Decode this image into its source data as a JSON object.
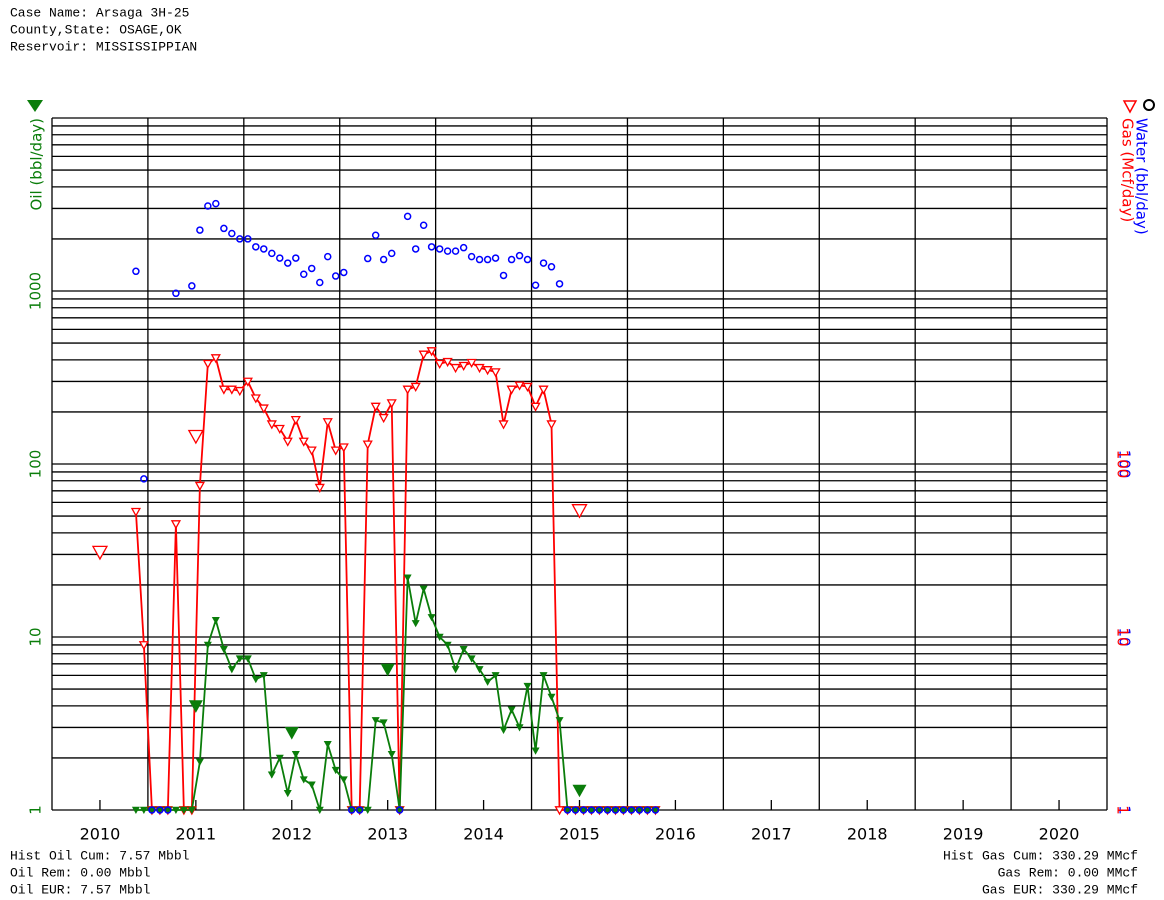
{
  "chart_data": {
    "type": "line",
    "header": [
      "Case Name: Arsaga 3H-25",
      "County,State: OSAGE,OK",
      "Reservoir: MISSISSIPPIAN"
    ],
    "footer_left": [
      "Hist Oil Cum: 7.57 Mbbl",
      "Oil Rem: 0.00 Mbbl",
      "Oil EUR: 7.57 Mbbl"
    ],
    "footer_right": [
      "Hist Gas Cum: 330.29 MMcf",
      "Gas Rem: 0.00 MMcf",
      "Gas EUR: 330.29 MMcf"
    ],
    "log": true,
    "xlim": [
      2010,
      2021
    ],
    "xgrid": [
      2010,
      2011,
      2012,
      2013,
      2014,
      2015,
      2016,
      2017,
      2018,
      2019,
      2020,
      2021
    ],
    "xticks": [
      {
        "value": 2010.5,
        "label": "2010"
      },
      {
        "value": 2011.5,
        "label": "2011"
      },
      {
        "value": 2012.5,
        "label": "2012"
      },
      {
        "value": 2013.5,
        "label": "2013"
      },
      {
        "value": 2014.5,
        "label": "2014"
      },
      {
        "value": 2015.5,
        "label": "2015"
      },
      {
        "value": 2016.5,
        "label": "2016"
      },
      {
        "value": 2017.5,
        "label": "2017"
      },
      {
        "value": 2018.5,
        "label": "2018"
      },
      {
        "value": 2019.5,
        "label": "2019"
      },
      {
        "value": 2020.5,
        "label": "2020"
      }
    ],
    "ylim": [
      1,
      10000
    ],
    "yticks": [
      1,
      10,
      100,
      1000
    ],
    "y2lim": [
      1,
      10000
    ],
    "y2ticks": [
      1,
      10,
      100
    ],
    "ygrid": [
      1,
      2,
      3,
      4,
      5,
      6,
      7,
      8,
      9,
      10,
      20,
      30,
      40,
      50,
      60,
      70,
      80,
      90,
      100,
      200,
      300,
      400,
      500,
      600,
      700,
      800,
      900,
      1000,
      2000,
      3000,
      4000,
      5000,
      6000,
      7000,
      8000,
      9000,
      10000
    ],
    "x": [
      2010.875,
      2010.958,
      2011.042,
      2011.125,
      2011.208,
      2011.292,
      2011.375,
      2011.458,
      2011.542,
      2011.625,
      2011.708,
      2011.792,
      2011.875,
      2011.958,
      2012.042,
      2012.125,
      2012.208,
      2012.292,
      2012.375,
      2012.458,
      2012.542,
      2012.625,
      2012.708,
      2012.792,
      2012.875,
      2012.958,
      2013.042,
      2013.125,
      2013.208,
      2013.292,
      2013.375,
      2013.458,
      2013.542,
      2013.625,
      2013.708,
      2013.792,
      2013.875,
      2013.958,
      2014.042,
      2014.125,
      2014.208,
      2014.292,
      2014.375,
      2014.458,
      2014.542,
      2014.625,
      2014.708,
      2014.792,
      2014.875,
      2014.958,
      2015.042,
      2015.125,
      2015.208,
      2015.292,
      2015.375,
      2015.458,
      2015.542,
      2015.625,
      2015.708,
      2015.792,
      2015.875,
      2015.958,
      2016.042,
      2016.125,
      2016.208,
      2016.292
    ],
    "series": [
      {
        "name": "Oil (bbl/day)",
        "color": "#0a7d0a",
        "marker": "triangle-filled",
        "line": true,
        "values": [
          1,
          1,
          1,
          1,
          1,
          1,
          1,
          1,
          1.9,
          9,
          12.5,
          8.5,
          6.5,
          7.5,
          7.5,
          5.7,
          6,
          1.6,
          2,
          1.25,
          2.1,
          1.5,
          1.4,
          1,
          2.4,
          1.7,
          1.5,
          1,
          1,
          1,
          3.3,
          3.2,
          2.1,
          1,
          22,
          12,
          19,
          13,
          10,
          9,
          6.5,
          8.5,
          7.5,
          6.5,
          5.5,
          6,
          2.9,
          3.8,
          3,
          5.2,
          2.2,
          6,
          4.5,
          3.3,
          1,
          1,
          1,
          1,
          1,
          1,
          1,
          1,
          1,
          1,
          1,
          1
        ]
      },
      {
        "name": "Gas (Mcf/day)",
        "color": "#ff0000",
        "marker": "triangle-open",
        "line": true,
        "values": [
          53,
          9,
          1,
          1,
          1,
          45,
          1,
          1,
          75,
          380,
          410,
          270,
          270,
          265,
          300,
          240,
          210,
          170,
          160,
          135,
          180,
          135,
          120,
          73,
          175,
          120,
          125,
          1,
          1,
          130,
          215,
          185,
          225,
          1,
          270,
          280,
          430,
          450,
          380,
          390,
          360,
          370,
          385,
          360,
          350,
          340,
          170,
          270,
          285,
          280,
          215,
          270,
          170,
          1,
          1,
          1,
          1,
          1,
          1,
          1,
          1,
          1,
          1,
          1,
          1,
          1
        ]
      },
      {
        "name": "Water (bbl/day)",
        "color": "#0000ff",
        "marker": "circle",
        "line": false,
        "values": [
          1300,
          82,
          1,
          1,
          1,
          970,
          null,
          1070,
          2250,
          3100,
          3200,
          2300,
          2150,
          2000,
          2000,
          1800,
          1750,
          1650,
          1550,
          1450,
          1550,
          1250,
          1350,
          1120,
          1580,
          1220,
          1280,
          1,
          1,
          1540,
          2100,
          1520,
          1650,
          1,
          2700,
          1750,
          2400,
          1800,
          1750,
          1700,
          1700,
          1780,
          1580,
          1520,
          1520,
          1550,
          1230,
          1520,
          1600,
          1520,
          1080,
          1450,
          1380,
          1100,
          1,
          1,
          1,
          1,
          1,
          1,
          1,
          1,
          1,
          1,
          1,
          1
        ]
      }
    ],
    "annual": {
      "x": [
        2010.5,
        2011.5,
        2012.5,
        2013.5,
        2015.5
      ],
      "oil": [
        null,
        4,
        2.8,
        6.5,
        1.3
      ],
      "gas": [
        31,
        145,
        null,
        null,
        54
      ]
    }
  }
}
